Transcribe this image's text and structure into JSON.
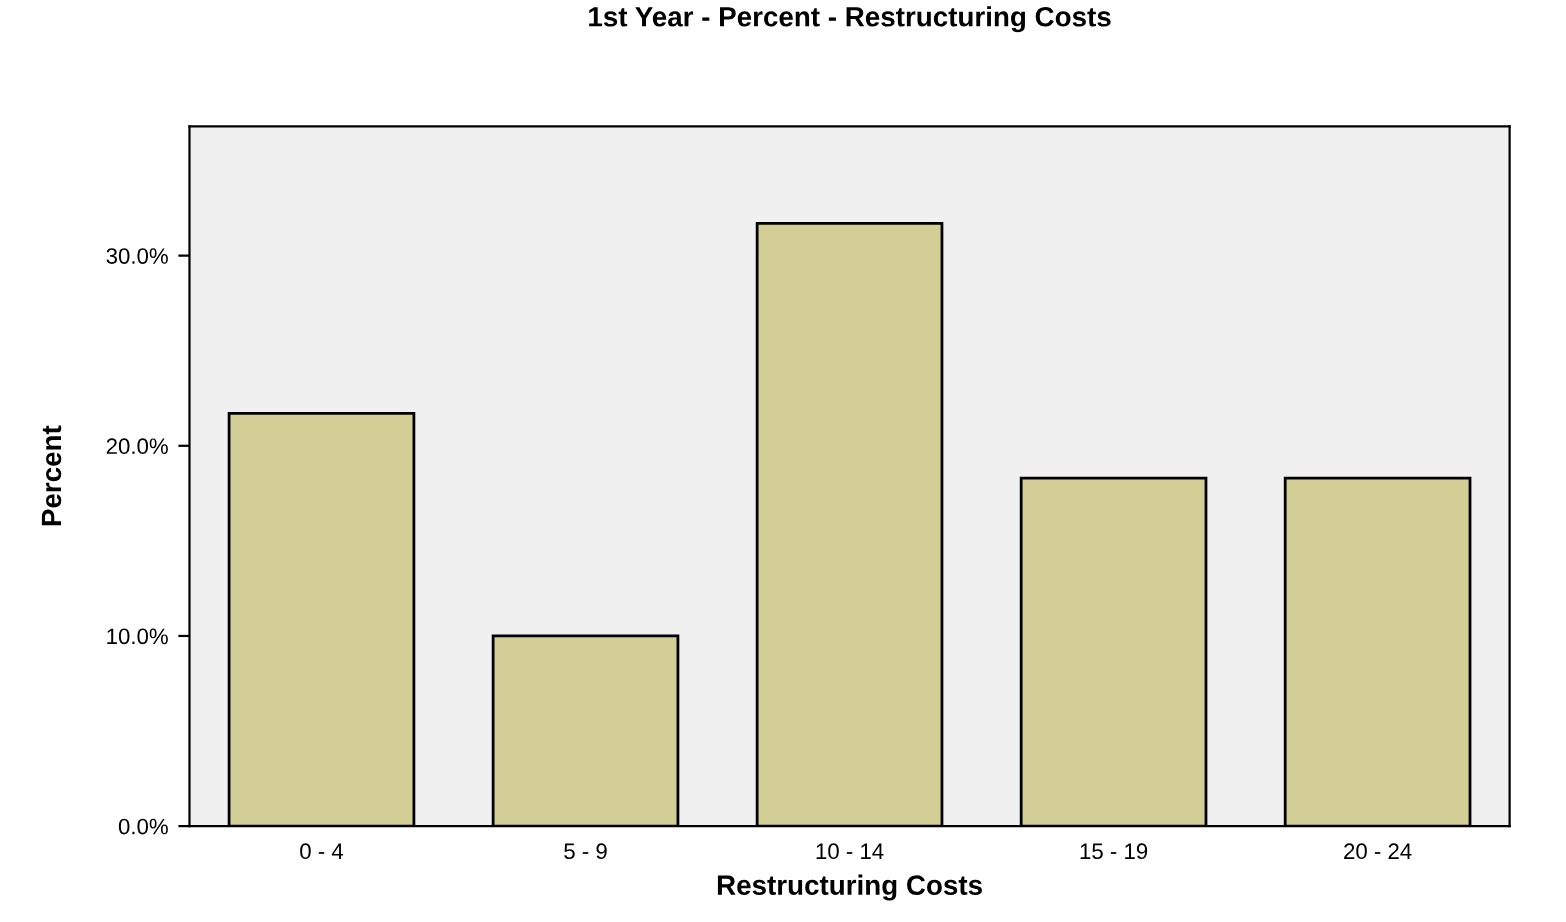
{
  "chart_data": {
    "type": "bar",
    "title": "1st Year - Percent - Restructuring Costs",
    "xlabel": "Restructuring Costs",
    "ylabel": "Percent",
    "categories": [
      "0 - 4",
      "5 - 9",
      "10 - 14",
      "15 - 19",
      "20 - 24"
    ],
    "values": [
      21.7,
      10.0,
      31.7,
      18.3,
      18.3
    ],
    "color": "#d3cd96",
    "ylim": [
      0,
      36.8
    ],
    "yticks": [
      {
        "value": 0,
        "label": "0.0%"
      },
      {
        "value": 10,
        "label": "10.0%"
      },
      {
        "value": 20,
        "label": "20.0%"
      },
      {
        "value": 30,
        "label": "30.0%"
      }
    ],
    "grid": false
  }
}
